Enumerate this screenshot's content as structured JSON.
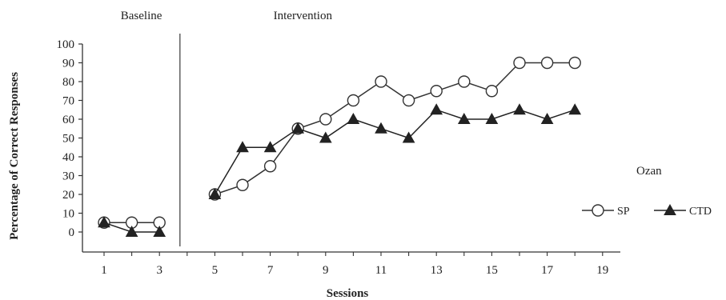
{
  "chart_data": {
    "type": "line",
    "title": "",
    "xlabel": "Sessions",
    "ylabel": "Percentage of Correct Responses",
    "xlim": [
      0.5,
      19.5
    ],
    "ylim": [
      0,
      100
    ],
    "x_ticks": [
      1,
      3,
      5,
      7,
      9,
      11,
      13,
      15,
      17,
      19
    ],
    "y_ticks": [
      0,
      10,
      20,
      30,
      40,
      50,
      60,
      70,
      80,
      90,
      100
    ],
    "phases": [
      {
        "label": "Baseline",
        "x_range": [
          1,
          3
        ]
      },
      {
        "label": "Intervention",
        "x_range": [
          5,
          18
        ]
      }
    ],
    "phase_change_after_session": 4,
    "subject": "Ozan",
    "legend_position": "right",
    "series": [
      {
        "name": "SP",
        "marker": "open-circle",
        "color": "#333333",
        "segments": [
          [
            [
              1,
              5
            ],
            [
              2,
              5
            ],
            [
              3,
              5
            ]
          ],
          [
            [
              5,
              20
            ],
            [
              6,
              25
            ],
            [
              7,
              35
            ],
            [
              8,
              55
            ],
            [
              9,
              60
            ],
            [
              10,
              70
            ],
            [
              11,
              80
            ],
            [
              12,
              70
            ],
            [
              13,
              75
            ],
            [
              14,
              80
            ],
            [
              15,
              75
            ],
            [
              16,
              90
            ],
            [
              17,
              90
            ],
            [
              18,
              90
            ]
          ]
        ]
      },
      {
        "name": "CTD",
        "marker": "filled-triangle",
        "color": "#222222",
        "segments": [
          [
            [
              1,
              5
            ],
            [
              2,
              0
            ],
            [
              3,
              0
            ]
          ],
          [
            [
              5,
              20
            ],
            [
              6,
              45
            ],
            [
              7,
              45
            ],
            [
              8,
              55
            ],
            [
              9,
              50
            ],
            [
              10,
              60
            ],
            [
              11,
              55
            ],
            [
              12,
              50
            ],
            [
              13,
              65
            ],
            [
              14,
              60
            ],
            [
              15,
              60
            ],
            [
              16,
              65
            ],
            [
              17,
              60
            ],
            [
              18,
              65
            ]
          ]
        ]
      }
    ]
  }
}
